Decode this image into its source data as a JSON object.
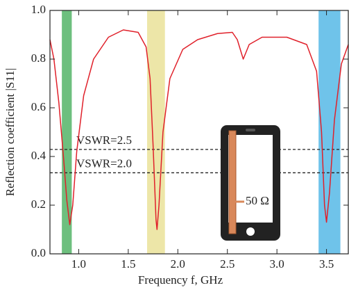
{
  "chart_data": {
    "type": "line",
    "x_label": "Frequency f, GHz",
    "y_label": "Reflection coefficient |S11|",
    "x": [
      0.71,
      0.75,
      0.8,
      0.85,
      0.88,
      0.91,
      0.94,
      0.98,
      1.05,
      1.15,
      1.3,
      1.45,
      1.6,
      1.68,
      1.72,
      1.75,
      1.78,
      1.79,
      1.81,
      1.85,
      1.92,
      2.05,
      2.2,
      2.4,
      2.55,
      2.6,
      2.66,
      2.72,
      2.85,
      3.1,
      3.3,
      3.4,
      3.45,
      3.48,
      3.5,
      3.53,
      3.58,
      3.65,
      3.72
    ],
    "series": [
      {
        "color": "#e0202a",
        "values": [
          0.88,
          0.8,
          0.62,
          0.38,
          0.22,
          0.12,
          0.2,
          0.42,
          0.65,
          0.8,
          0.89,
          0.92,
          0.91,
          0.85,
          0.72,
          0.45,
          0.14,
          0.1,
          0.2,
          0.5,
          0.72,
          0.84,
          0.88,
          0.905,
          0.91,
          0.88,
          0.8,
          0.86,
          0.89,
          0.89,
          0.86,
          0.75,
          0.5,
          0.2,
          0.13,
          0.25,
          0.55,
          0.78,
          0.86
        ]
      }
    ],
    "bands": [
      {
        "x": [
          0.83,
          0.93
        ],
        "color": "#6dbf7e"
      },
      {
        "x": [
          1.69,
          1.87
        ],
        "color": "#ede6a8"
      },
      {
        "x": [
          3.42,
          3.64
        ],
        "color": "#6fc3ea"
      }
    ],
    "hlines": [
      {
        "value": 0.429,
        "label": "VSWR=2.5"
      },
      {
        "value": 0.333,
        "label": "VSWR=2.0"
      }
    ],
    "inset_label": "50 Ω",
    "xlim": [
      0.71,
      3.72
    ],
    "ylim": [
      0,
      1
    ],
    "xticks": [
      {
        "value": 1,
        "label": "1.0"
      },
      1.5,
      {
        "value": 2,
        "label": "2.0"
      },
      2.5,
      {
        "value": 3,
        "label": "3.0"
      },
      3.5
    ],
    "yticks": [
      {
        "value": 0,
        "label": "0.0"
      },
      0.2,
      0.4,
      0.6,
      0.8,
      {
        "value": 1,
        "label": "1.0"
      }
    ]
  }
}
